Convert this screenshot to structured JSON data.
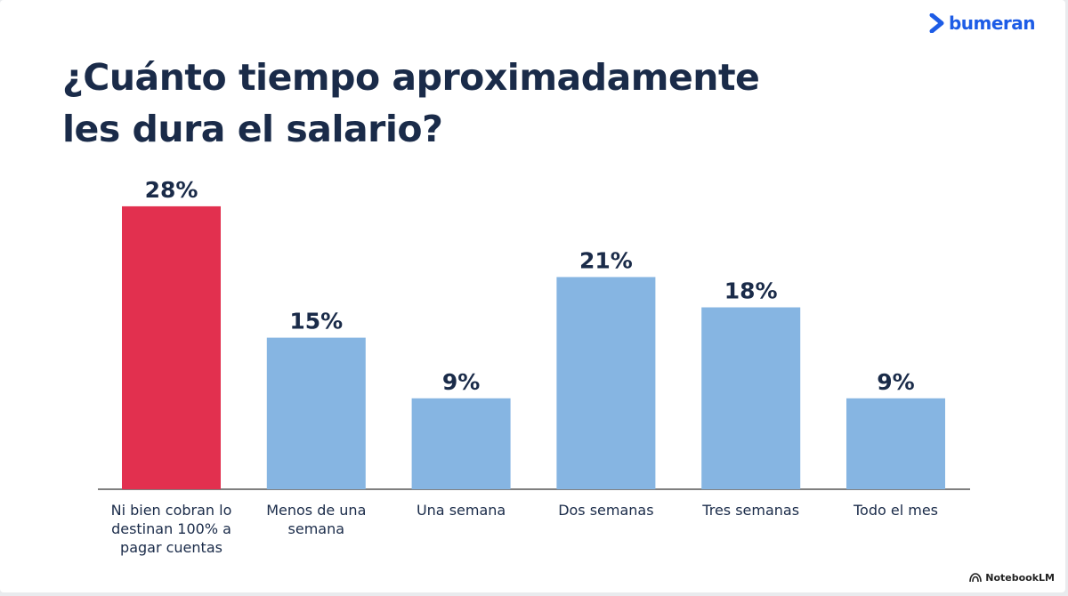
{
  "brand": {
    "name": "bumeran",
    "icon": "chevron-right-icon",
    "color": "#1d5ce6"
  },
  "title_lines": [
    "¿Cuánto tiempo aproximadamente",
    "les dura el salario?"
  ],
  "watermark": {
    "text": "NotebookLM",
    "icon": "notebooklm-icon"
  },
  "colors": {
    "highlight": "#e2304f",
    "bar": "#86b5e2",
    "text": "#1a2b49",
    "axis": "#555555"
  },
  "chart_data": {
    "type": "bar",
    "categories": [
      "Ni bien cobran lo destinan 100% a pagar cuentas",
      "Menos de una semana",
      "Una semana",
      "Dos semanas",
      "Tres semanas",
      "Todo el mes"
    ],
    "category_lines": [
      [
        "Ni bien cobran lo",
        "destinan 100% a",
        "pagar cuentas"
      ],
      [
        "Menos de una",
        "semana"
      ],
      [
        "Una semana"
      ],
      [
        "Dos semanas"
      ],
      [
        "Tres semanas"
      ],
      [
        "Todo el mes"
      ]
    ],
    "values": [
      28,
      15,
      9,
      21,
      18,
      9
    ],
    "value_labels": [
      "28%",
      "15%",
      "9%",
      "21%",
      "18%",
      "9%"
    ],
    "highlight_index": 0,
    "title": "¿Cuánto tiempo aproximadamente les dura el salario?",
    "xlabel": "",
    "ylabel": "",
    "grid": false,
    "legend": "none"
  }
}
